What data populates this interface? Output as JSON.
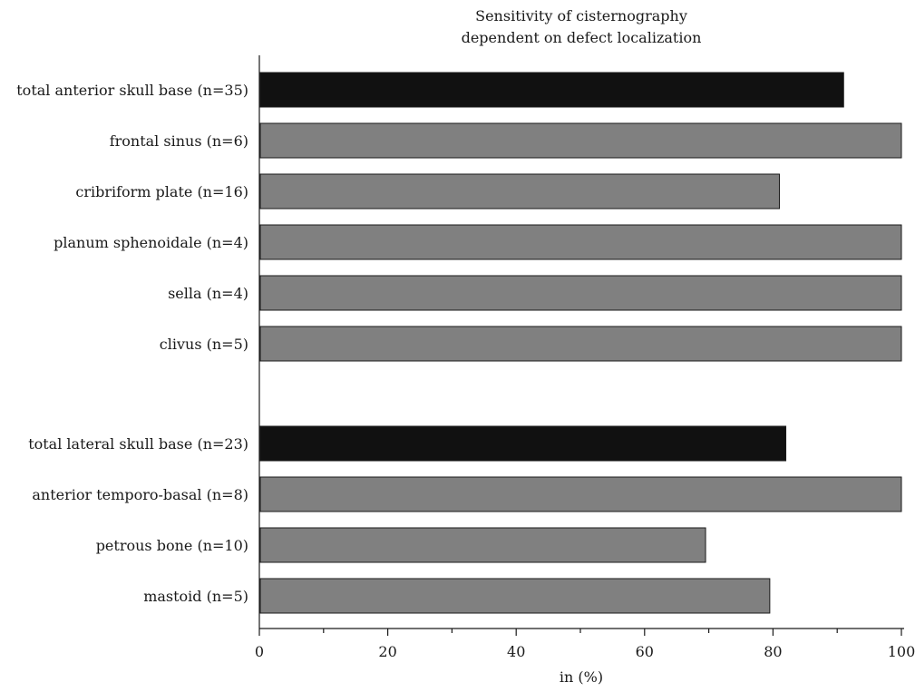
{
  "chart_data": {
    "type": "bar",
    "orientation": "horizontal",
    "title": [
      "Sensitivity of cisternography",
      "dependent on defect localization"
    ],
    "xlabel": "in (%)",
    "ylabel": "",
    "xlim": [
      0,
      100
    ],
    "x_ticks": [
      0,
      20,
      40,
      60,
      80,
      100
    ],
    "grid": false,
    "groups": [
      {
        "categories": [
          "total anterior skull base (n=35)",
          "frontal sinus (n=6)",
          "cribriform plate (n=16)",
          "planum sphenoidale (n=4)",
          "sella (n=4)",
          "clivus (n=5)"
        ],
        "values": [
          91,
          100,
          81,
          100,
          100,
          100
        ],
        "highlight": [
          true,
          false,
          false,
          false,
          false,
          false
        ]
      },
      {
        "categories": [
          "total lateral skull base (n=23)",
          "anterior temporo-basal (n=8)",
          "petrous bone (n=10)",
          "mastoid (n=5)"
        ],
        "values": [
          82,
          100,
          69.5,
          79.5
        ],
        "highlight": [
          true,
          false,
          false,
          false
        ]
      }
    ],
    "colors": {
      "total": "#111111",
      "subgroup": "#808080",
      "edge": "#1a1a1a"
    }
  }
}
